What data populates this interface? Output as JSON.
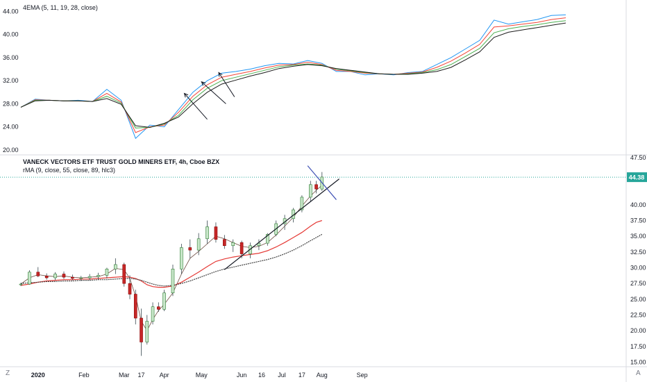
{
  "chart_data": [
    {
      "type": "line",
      "indicator": "4EMA (5, 11, 19, 28, close)",
      "ylim": [
        19.5,
        45.5
      ],
      "grid": false,
      "y_ticks": [
        "44.00",
        "40.00",
        "36.00",
        "32.00",
        "28.00",
        "24.00",
        "20.00"
      ],
      "y_tick_values": [
        44,
        40,
        36,
        32,
        28,
        24,
        20
      ],
      "x": [
        0,
        5,
        10,
        15,
        20,
        25,
        30,
        35,
        40,
        45,
        50,
        55,
        60,
        65,
        70,
        75,
        80,
        85,
        90,
        95,
        100,
        105,
        110,
        115,
        120,
        125,
        130,
        135,
        140,
        145,
        150,
        155,
        160,
        165,
        170,
        175,
        180,
        185,
        190
      ],
      "series": [
        {
          "name": "EMA 5",
          "color": "#2196f3",
          "values": [
            27.4,
            28.8,
            28.6,
            28.5,
            28.6,
            28.4,
            30.5,
            28.6,
            22.0,
            24.3,
            24.0,
            27.0,
            30.0,
            32.0,
            33.3,
            33.6,
            34.0,
            34.6,
            35.0,
            34.9,
            35.5,
            35.0,
            33.6,
            33.6,
            33.0,
            33.2,
            33.0,
            33.4,
            33.6,
            34.8,
            36.0,
            37.5,
            39.0,
            42.5,
            41.8,
            42.2,
            42.6,
            43.3,
            43.4
          ]
        },
        {
          "name": "EMA 11",
          "color": "#f44336",
          "values": [
            27.4,
            28.7,
            28.6,
            28.5,
            28.5,
            28.4,
            29.8,
            28.3,
            23.0,
            24.0,
            24.3,
            26.5,
            29.3,
            31.3,
            32.6,
            33.1,
            33.6,
            34.2,
            34.7,
            34.8,
            35.2,
            34.8,
            33.8,
            33.6,
            33.3,
            33.2,
            33.1,
            33.3,
            33.5,
            34.3,
            35.4,
            36.8,
            38.3,
            41.3,
            41.5,
            41.8,
            42.1,
            42.6,
            42.9
          ]
        },
        {
          "name": "EMA 19",
          "color": "#4caf50",
          "values": [
            27.4,
            28.6,
            28.6,
            28.5,
            28.5,
            28.4,
            29.3,
            28.1,
            23.8,
            23.9,
            24.5,
            26.0,
            28.7,
            30.7,
            32.0,
            32.6,
            33.2,
            33.8,
            34.4,
            34.7,
            34.9,
            34.7,
            34.0,
            33.7,
            33.4,
            33.2,
            33.1,
            33.2,
            33.4,
            33.9,
            34.8,
            36.2,
            37.6,
            40.3,
            41.0,
            41.4,
            41.7,
            42.1,
            42.4
          ]
        },
        {
          "name": "EMA 28",
          "color": "#1b1b1b",
          "values": [
            27.4,
            28.5,
            28.6,
            28.5,
            28.5,
            28.4,
            28.9,
            27.9,
            24.2,
            23.9,
            24.6,
            25.7,
            28.0,
            30.0,
            31.4,
            32.1,
            32.8,
            33.4,
            34.1,
            34.5,
            34.8,
            34.6,
            34.1,
            33.8,
            33.5,
            33.2,
            33.1,
            33.1,
            33.3,
            33.6,
            34.3,
            35.6,
            37.0,
            39.5,
            40.4,
            40.8,
            41.2,
            41.6,
            42.0
          ]
        }
      ],
      "annotations": [
        {
          "type": "arrow",
          "tip": [
            57,
            29.8
          ],
          "tail": [
            65,
            25.3
          ]
        },
        {
          "type": "arrow",
          "tip": [
            63,
            31.8
          ],
          "tail": [
            71.5,
            28.0
          ]
        },
        {
          "type": "arrow",
          "tip": [
            69,
            33.4
          ],
          "tail": [
            74.5,
            29.2
          ]
        }
      ]
    },
    {
      "type": "candlestick",
      "title": "VANECK VECTORS ETF TRUST GOLD MINERS ETF, 4h, Cboe BZX",
      "indicator": "rMA (9, close, 55, close, 89, hlc3)",
      "last_price": "44.38",
      "last_price_value": 44.38,
      "ylim": [
        14.5,
        47.7
      ],
      "grid": false,
      "y_ticks": [
        "47.50",
        "40.00",
        "37.50",
        "35.00",
        "32.50",
        "30.00",
        "27.50",
        "25.00",
        "22.50",
        "20.00",
        "17.50",
        "15.00"
      ],
      "y_tick_values": [
        47.5,
        40,
        37.5,
        35,
        32.5,
        30,
        27.5,
        25,
        22.5,
        20,
        17.5,
        15
      ],
      "x_ticks": [
        "2020",
        "Feb",
        "Mar",
        "17",
        "Apr",
        "May",
        "Jun",
        "16",
        "Jul",
        "17",
        "Aug",
        "Sep"
      ],
      "x_tick_positions": [
        6,
        22,
        36,
        42,
        50,
        63,
        77,
        84,
        91,
        98,
        105,
        119
      ],
      "candle_x": [
        0,
        3,
        6,
        9,
        12,
        15,
        18,
        21,
        24,
        27,
        30,
        33,
        36,
        38,
        40,
        42,
        44,
        46,
        48,
        50,
        53,
        56,
        59,
        62,
        65,
        68,
        71,
        74,
        77,
        80,
        83,
        86,
        89,
        92,
        95,
        98,
        101,
        103,
        105
      ],
      "ohlc": [
        [
          27.3,
          27.6,
          27.1,
          27.4
        ],
        [
          27.4,
          29.6,
          27.3,
          29.3
        ],
        [
          29.3,
          30.1,
          28.5,
          28.7
        ],
        [
          28.7,
          29.1,
          28.1,
          28.4
        ],
        [
          28.4,
          29.3,
          28.0,
          29.0
        ],
        [
          29.0,
          29.4,
          28.2,
          28.5
        ],
        [
          28.5,
          28.9,
          28.0,
          28.3
        ],
        [
          28.3,
          28.7,
          27.9,
          28.4
        ],
        [
          28.4,
          29.0,
          28.0,
          28.6
        ],
        [
          28.6,
          29.2,
          28.1,
          28.8
        ],
        [
          28.8,
          30.0,
          28.3,
          29.8
        ],
        [
          29.8,
          31.5,
          29.0,
          30.5
        ],
        [
          30.5,
          30.8,
          27.0,
          27.5
        ],
        [
          27.5,
          28.8,
          25.0,
          25.8
        ],
        [
          25.8,
          26.5,
          21.0,
          22.0
        ],
        [
          22.0,
          23.5,
          16.0,
          18.2
        ],
        [
          18.2,
          22.5,
          17.8,
          21.5
        ],
        [
          21.5,
          24.5,
          21.0,
          23.8
        ],
        [
          23.8,
          24.5,
          23.0,
          23.4
        ],
        [
          23.4,
          26.5,
          23.1,
          26.0
        ],
        [
          26.0,
          30.5,
          25.5,
          29.8
        ],
        [
          29.8,
          33.8,
          29.0,
          33.2
        ],
        [
          33.2,
          34.5,
          31.5,
          32.8
        ],
        [
          32.8,
          35.5,
          32.0,
          34.6
        ],
        [
          34.6,
          37.5,
          33.8,
          36.5
        ],
        [
          36.5,
          37.2,
          34.0,
          34.5
        ],
        [
          34.5,
          35.2,
          33.0,
          33.5
        ],
        [
          33.5,
          34.5,
          32.5,
          34.0
        ],
        [
          34.0,
          34.3,
          31.5,
          32.2
        ],
        [
          32.2,
          34.0,
          31.5,
          33.5
        ],
        [
          33.5,
          34.5,
          32.8,
          33.9
        ],
        [
          33.9,
          35.5,
          33.5,
          35.3
        ],
        [
          35.3,
          37.5,
          35.0,
          37.0
        ],
        [
          37.0,
          38.4,
          36.0,
          37.8
        ],
        [
          37.8,
          39.5,
          37.2,
          39.2
        ],
        [
          39.2,
          41.5,
          38.8,
          41.2
        ],
        [
          41.2,
          43.8,
          40.5,
          43.2
        ],
        [
          43.2,
          43.8,
          41.8,
          42.5
        ],
        [
          42.5,
          45.2,
          42.2,
          44.4
        ]
      ],
      "series": [
        {
          "name": "rMA 9",
          "color": "#6d4c41",
          "values": [
            27.4,
            28.4,
            28.9,
            28.7,
            28.6,
            28.7,
            28.5,
            28.4,
            28.5,
            28.6,
            29.0,
            29.9,
            29.7,
            28.3,
            25.5,
            21.5,
            20.0,
            21.8,
            23.2,
            24.2,
            26.0,
            29.0,
            31.5,
            32.6,
            33.8,
            35.0,
            34.6,
            34.0,
            33.4,
            33.2,
            33.4,
            34.0,
            35.2,
            36.6,
            38.0,
            39.8,
            41.4,
            42.3,
            43.1
          ]
        },
        {
          "name": "rMA 55",
          "color": "#e53935",
          "values": [
            27.2,
            27.4,
            27.7,
            27.9,
            28.0,
            28.1,
            28.1,
            28.2,
            28.2,
            28.3,
            28.4,
            28.5,
            28.6,
            28.5,
            28.3,
            27.9,
            27.3,
            27.0,
            26.9,
            26.9,
            27.1,
            27.7,
            28.5,
            29.3,
            30.2,
            31.0,
            31.4,
            31.7,
            31.9,
            32.1,
            32.3,
            32.7,
            33.3,
            34.0,
            34.8,
            35.6,
            36.6,
            37.2,
            37.5
          ]
        },
        {
          "name": "rMA 89",
          "color": "#424242",
          "values": [
            27.5,
            27.6,
            27.7,
            27.8,
            27.8,
            27.9,
            27.9,
            28.0,
            28.0,
            28.1,
            28.1,
            28.2,
            28.3,
            28.3,
            28.2,
            28.0,
            27.7,
            27.4,
            27.2,
            27.1,
            27.2,
            27.5,
            27.9,
            28.4,
            28.9,
            29.4,
            29.8,
            30.1,
            30.4,
            30.7,
            31.0,
            31.3,
            31.7,
            32.2,
            32.8,
            33.5,
            34.3,
            34.8,
            35.3
          ]
        }
      ],
      "annotations": [
        {
          "type": "trendline",
          "color": "#131722",
          "from": [
            71,
            29.7
          ],
          "to": [
            111,
            44.1
          ]
        },
        {
          "type": "trendline",
          "color": "#3f51b5",
          "from": [
            100,
            46.2
          ],
          "to": [
            110,
            40.8
          ]
        }
      ]
    }
  ],
  "corner_left": "Z",
  "corner_right": "A"
}
